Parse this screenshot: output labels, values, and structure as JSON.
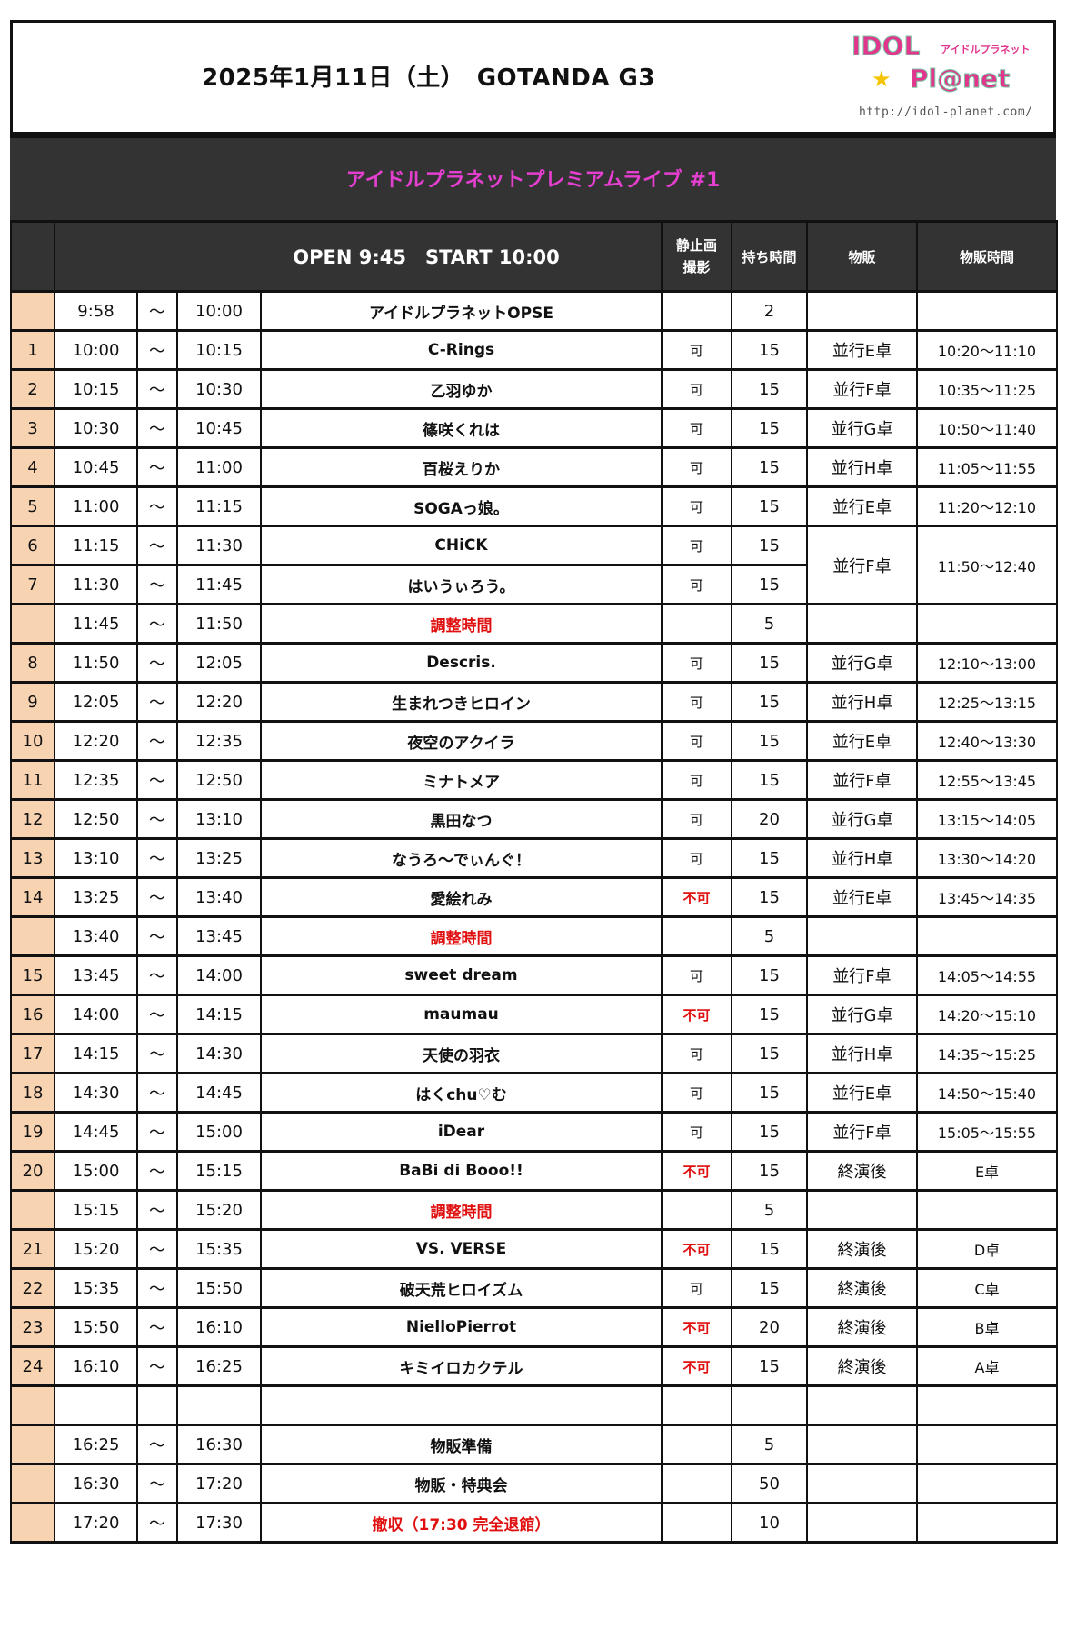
{
  "header": {
    "title": "2025年1月11日（土）　GOTANDA G3",
    "logo": {
      "text_top": "IDOL",
      "text_kana": "アイドルプラネット",
      "text_bottom": "Pl@net",
      "url": "http://idol-planet.com/"
    }
  },
  "event_title": "アイドルプラネットプレミアムライブ #1",
  "colors": {
    "event_title": "#e53fcf",
    "band": "#333333",
    "number_col": "#f8d3b1",
    "warning": "#e01010"
  },
  "columns": {
    "open_start": "OPEN 9:45　START 10:00",
    "photo": "静止画撮影",
    "duration": "持ち時間",
    "merch": "物販",
    "merch_time": "物販時間"
  },
  "rows": [
    {
      "num": "",
      "start": "9:58",
      "sep": "～",
      "end": "10:00",
      "name": "アイドルプラネットOPSE",
      "photo": "",
      "dur": "2",
      "merch": "",
      "mtime": ""
    },
    {
      "num": "1",
      "start": "10:00",
      "sep": "～",
      "end": "10:15",
      "name": "C-Rings",
      "photo": "可",
      "dur": "15",
      "merch": "並行E卓",
      "mtime": "10:20～11:10"
    },
    {
      "num": "2",
      "start": "10:15",
      "sep": "～",
      "end": "10:30",
      "name": "乙羽ゆか",
      "photo": "可",
      "dur": "15",
      "merch": "並行F卓",
      "mtime": "10:35～11:25"
    },
    {
      "num": "3",
      "start": "10:30",
      "sep": "～",
      "end": "10:45",
      "name": "篠咲くれは",
      "photo": "可",
      "dur": "15",
      "merch": "並行G卓",
      "mtime": "10:50～11:40"
    },
    {
      "num": "4",
      "start": "10:45",
      "sep": "～",
      "end": "11:00",
      "name": "百桜えりか",
      "photo": "可",
      "dur": "15",
      "merch": "並行H卓",
      "mtime": "11:05～11:55"
    },
    {
      "num": "5",
      "start": "11:00",
      "sep": "～",
      "end": "11:15",
      "name": "SOGAっ娘。",
      "photo": "可",
      "dur": "15",
      "merch": "並行E卓",
      "mtime": "11:20～12:10"
    },
    {
      "num": "6",
      "start": "11:15",
      "sep": "～",
      "end": "11:30",
      "name": "CHiCK",
      "photo": "可",
      "dur": "15",
      "merch": "並行F卓",
      "mtime": "11:50～12:40"
    },
    {
      "num": "7",
      "start": "11:30",
      "sep": "～",
      "end": "11:45",
      "name": "はいうぃろう。",
      "photo": "可",
      "dur": "15"
    },
    {
      "num": "",
      "start": "11:45",
      "sep": "～",
      "end": "11:50",
      "name": "調整時間",
      "red": true,
      "photo": "",
      "dur": "5",
      "merch": "",
      "mtime": ""
    },
    {
      "num": "8",
      "start": "11:50",
      "sep": "～",
      "end": "12:05",
      "name": "Descris.",
      "photo": "可",
      "dur": "15",
      "merch": "並行G卓",
      "mtime": "12:10～13:00"
    },
    {
      "num": "9",
      "start": "12:05",
      "sep": "～",
      "end": "12:20",
      "name": "生まれつきヒロイン",
      "photo": "可",
      "dur": "15",
      "merch": "並行H卓",
      "mtime": "12:25～13:15"
    },
    {
      "num": "10",
      "start": "12:20",
      "sep": "～",
      "end": "12:35",
      "name": "夜空のアクイラ",
      "photo": "可",
      "dur": "15",
      "merch": "並行E卓",
      "mtime": "12:40～13:30"
    },
    {
      "num": "11",
      "start": "12:35",
      "sep": "～",
      "end": "12:50",
      "name": "ミナトメア",
      "photo": "可",
      "dur": "15",
      "merch": "並行F卓",
      "mtime": "12:55～13:45"
    },
    {
      "num": "12",
      "start": "12:50",
      "sep": "～",
      "end": "13:10",
      "name": "黒田なつ",
      "photo": "可",
      "dur": "20",
      "merch": "並行G卓",
      "mtime": "13:15～14:05"
    },
    {
      "num": "13",
      "start": "13:10",
      "sep": "～",
      "end": "13:25",
      "name": "なうろ～でぃんぐ！",
      "photo": "可",
      "dur": "15",
      "merch": "並行H卓",
      "mtime": "13:30～14:20"
    },
    {
      "num": "14",
      "start": "13:25",
      "sep": "～",
      "end": "13:40",
      "name": "愛絵れみ",
      "photo": "不可",
      "dur": "15",
      "merch": "並行E卓",
      "mtime": "13:45～14:35"
    },
    {
      "num": "",
      "start": "13:40",
      "sep": "～",
      "end": "13:45",
      "name": "調整時間",
      "red": true,
      "photo": "",
      "dur": "5",
      "merch": "",
      "mtime": ""
    },
    {
      "num": "15",
      "start": "13:45",
      "sep": "～",
      "end": "14:00",
      "name": "sweet dream",
      "photo": "可",
      "dur": "15",
      "merch": "並行F卓",
      "mtime": "14:05～14:55"
    },
    {
      "num": "16",
      "start": "14:00",
      "sep": "～",
      "end": "14:15",
      "name": "maumau",
      "photo": "不可",
      "dur": "15",
      "merch": "並行G卓",
      "mtime": "14:20～15:10"
    },
    {
      "num": "17",
      "start": "14:15",
      "sep": "～",
      "end": "14:30",
      "name": "天使の羽衣",
      "photo": "可",
      "dur": "15",
      "merch": "並行H卓",
      "mtime": "14:35～15:25"
    },
    {
      "num": "18",
      "start": "14:30",
      "sep": "～",
      "end": "14:45",
      "name": "はくchu♡む",
      "photo": "可",
      "dur": "15",
      "merch": "並行E卓",
      "mtime": "14:50～15:40"
    },
    {
      "num": "19",
      "start": "14:45",
      "sep": "～",
      "end": "15:00",
      "name": "iDear",
      "photo": "可",
      "dur": "15",
      "merch": "並行F卓",
      "mtime": "15:05～15:55"
    },
    {
      "num": "20",
      "start": "15:00",
      "sep": "～",
      "end": "15:15",
      "name": "BaBi di Booo!!",
      "photo": "不可",
      "dur": "15",
      "merch": "終演後",
      "mtime": "E卓"
    },
    {
      "num": "",
      "start": "15:15",
      "sep": "～",
      "end": "15:20",
      "name": "調整時間",
      "red": true,
      "photo": "",
      "dur": "5",
      "merch": "",
      "mtime": ""
    },
    {
      "num": "21",
      "start": "15:20",
      "sep": "～",
      "end": "15:35",
      "name": "VS. VERSE",
      "photo": "不可",
      "dur": "15",
      "merch": "終演後",
      "mtime": "D卓"
    },
    {
      "num": "22",
      "start": "15:35",
      "sep": "～",
      "end": "15:50",
      "name": "破天荒ヒロイズム",
      "photo": "可",
      "dur": "15",
      "merch": "終演後",
      "mtime": "C卓"
    },
    {
      "num": "23",
      "start": "15:50",
      "sep": "～",
      "end": "16:10",
      "name": "NielloPierrot",
      "photo": "不可",
      "dur": "20",
      "merch": "終演後",
      "mtime": "B卓"
    },
    {
      "num": "24",
      "start": "16:10",
      "sep": "～",
      "end": "16:25",
      "name": "キミイロカクテル",
      "photo": "不可",
      "dur": "15",
      "merch": "終演後",
      "mtime": "A卓"
    },
    {
      "num": "",
      "start": "",
      "sep": "",
      "end": "",
      "name": "",
      "photo": "",
      "dur": "",
      "merch": "",
      "mtime": ""
    },
    {
      "num": "",
      "start": "16:25",
      "sep": "～",
      "end": "16:30",
      "name": "物販準備",
      "photo": "",
      "dur": "5",
      "merch": "",
      "mtime": ""
    },
    {
      "num": "",
      "start": "16:30",
      "sep": "～",
      "end": "17:20",
      "name": "物販・特典会",
      "photo": "",
      "dur": "50",
      "merch": "",
      "mtime": ""
    },
    {
      "num": "",
      "start": "17:20",
      "sep": "～",
      "end": "17:30",
      "name": "撤収（17:30 完全退館）",
      "red": true,
      "photo": "",
      "dur": "10",
      "merch": "",
      "mtime": ""
    }
  ]
}
